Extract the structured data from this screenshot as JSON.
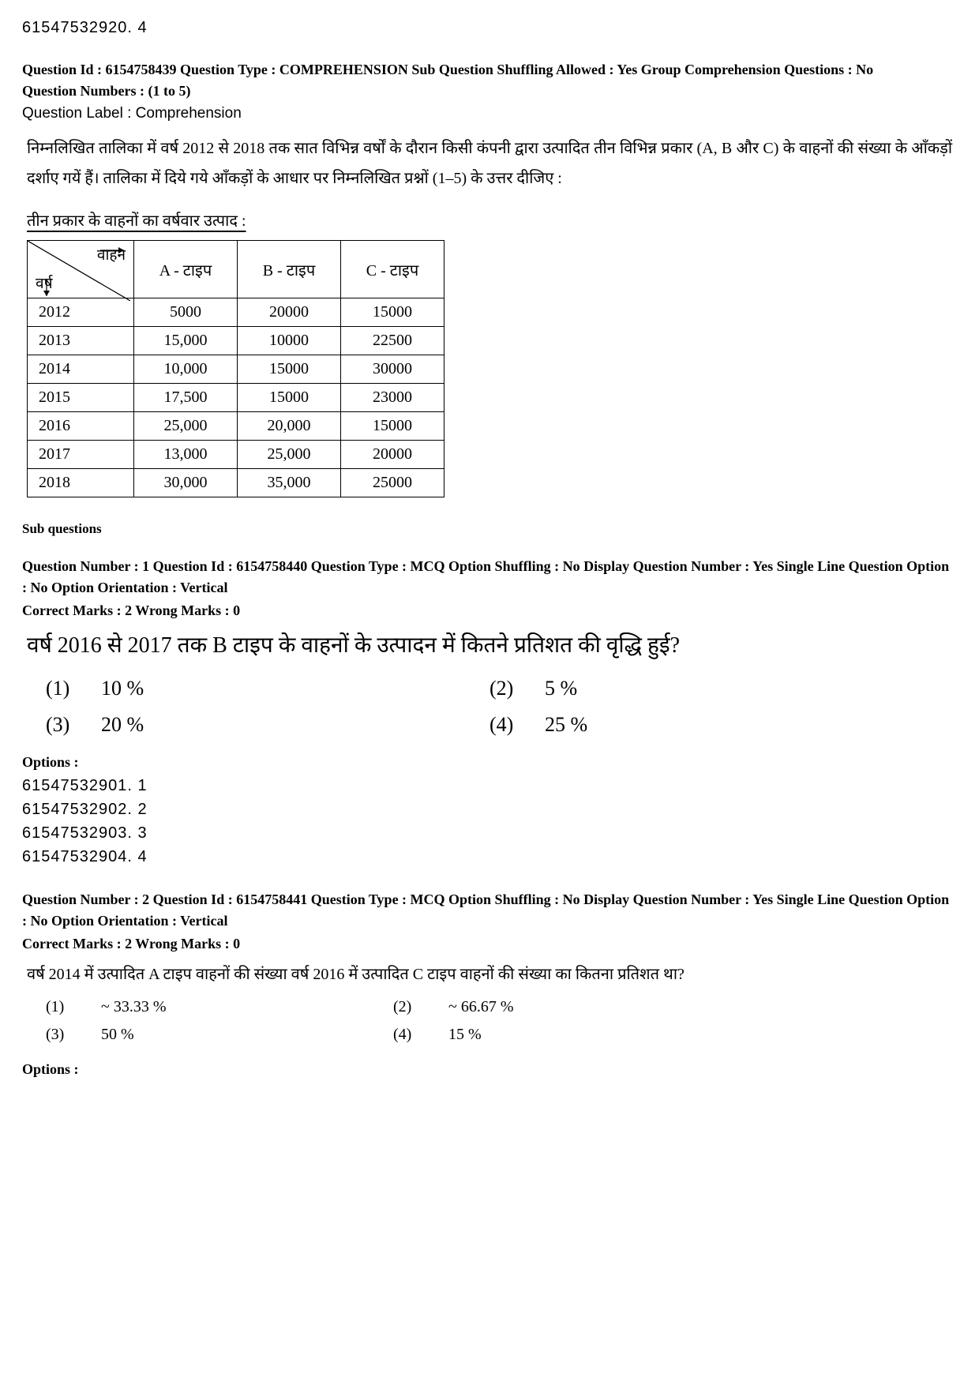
{
  "top_id": "61547532920. 4",
  "comp_meta": "Question Id : 6154758439  Question Type : COMPREHENSION  Sub Question Shuffling Allowed : Yes  Group Comprehension Questions : No",
  "q_numbers": "Question Numbers : (1 to 5)",
  "q_label": "Question Label : Comprehension",
  "passage": "निम्नलिखित तालिका में वर्ष 2012 से 2018 तक सात विभिन्न वर्षों के दौरान किसी कंपनी द्वारा उत्पादित तीन विभिन्न प्रकार (A, B और C) के वाहनों की संख्या के आँकड़ों दर्शाए गयें हैं। तालिका में दिये गये आँकड़ों के आधार पर निम्नलिखित प्रश्नों (1–5) के उत्तर दीजिए :",
  "table_title": "तीन प्रकार के वाहनों का वर्षवार उत्पाद :",
  "table": {
    "diag_top": "वाहन",
    "diag_bot": "वर्ष",
    "columns": [
      "A - टाइप",
      "B - टाइप",
      "C - टाइप"
    ],
    "rows": [
      {
        "year": "2012",
        "cells": [
          "5000",
          "20000",
          "15000"
        ]
      },
      {
        "year": "2013",
        "cells": [
          "15,000",
          "10000",
          "22500"
        ]
      },
      {
        "year": "2014",
        "cells": [
          "10,000",
          "15000",
          "30000"
        ]
      },
      {
        "year": "2015",
        "cells": [
          "17,500",
          "15000",
          "23000"
        ]
      },
      {
        "year": "2016",
        "cells": [
          "25,000",
          "20,000",
          "15000"
        ]
      },
      {
        "year": "2017",
        "cells": [
          "13,000",
          "25,000",
          "20000"
        ]
      },
      {
        "year": "2018",
        "cells": [
          "30,000",
          "35,000",
          "25000"
        ]
      }
    ]
  },
  "subq_header": "Sub questions",
  "q1": {
    "meta1": "Question Number : 1  Question Id : 6154758440  Question Type : MCQ  Option Shuffling : No  Display Question Number : Yes  Single Line Question Option : No  Option Orientation : Vertical",
    "meta2": "Correct Marks : 2  Wrong Marks : 0",
    "text": "वर्ष 2016 से 2017 तक B टाइप के वाहनों के उत्पादन में कितने प्रतिशत की वृद्धि हुई?",
    "opts": [
      {
        "n": "(1)",
        "v": "10 %"
      },
      {
        "n": "(2)",
        "v": "5 %"
      },
      {
        "n": "(3)",
        "v": "20 %"
      },
      {
        "n": "(4)",
        "v": "25 %"
      }
    ],
    "options_label": "Options :",
    "option_ids": [
      "61547532901. 1",
      "61547532902. 2",
      "61547532903. 3",
      "61547532904. 4"
    ]
  },
  "q2": {
    "meta1": "Question Number : 2  Question Id : 6154758441  Question Type : MCQ  Option Shuffling : No  Display Question Number : Yes  Single Line Question Option : No  Option Orientation : Vertical",
    "meta2": "Correct Marks : 2  Wrong Marks : 0",
    "text": "वर्ष 2014 में उत्पादित A टाइप वाहनों की संख्या वर्ष 2016 में उत्पादित C टाइप वाहनों की संख्या का कितना प्रतिशत था?",
    "opts": [
      {
        "n": "(1)",
        "v": "~ 33.33 %"
      },
      {
        "n": "(2)",
        "v": "~ 66.67 %"
      },
      {
        "n": "(3)",
        "v": "50 %"
      },
      {
        "n": "(4)",
        "v": "15 %"
      }
    ],
    "options_label": "Options :"
  }
}
